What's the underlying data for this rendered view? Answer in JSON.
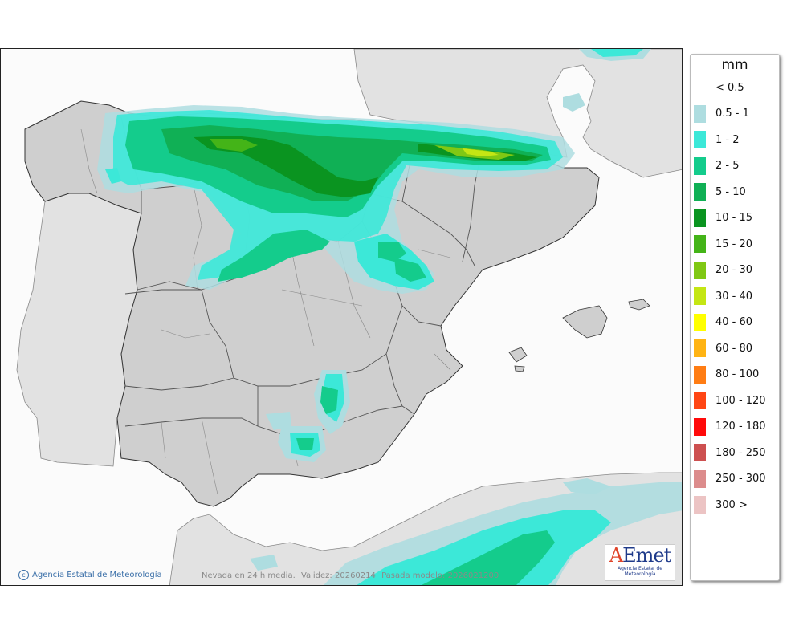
{
  "map": {
    "credit": "Agencia Estatal de Meteorología",
    "info_product": "Nevada en 24 h media.",
    "info_validity": "Validez: 20260214",
    "info_run": "Pasada modelo: 2026021200",
    "logo_a": "A",
    "logo_e": "E",
    "logo_met": "met",
    "logo_sub": "Agencia Estatal de Meteorología"
  },
  "legend": {
    "title": "mm",
    "items": [
      {
        "label": "< 0.5",
        "color": "#ffffff"
      },
      {
        "label": "0.5 - 1",
        "color": "#aedde0"
      },
      {
        "label": "1 - 2",
        "color": "#3ce8d8"
      },
      {
        "label": "2 - 5",
        "color": "#14cc8c"
      },
      {
        "label": "5 - 10",
        "color": "#10b055"
      },
      {
        "label": "10 - 15",
        "color": "#0a9420"
      },
      {
        "label": "15 - 20",
        "color": "#44b418"
      },
      {
        "label": "20 - 30",
        "color": "#80c814"
      },
      {
        "label": "30 - 40",
        "color": "#c4e614"
      },
      {
        "label": "40 - 60",
        "color": "#ffff00"
      },
      {
        "label": "60 - 80",
        "color": "#ffb414"
      },
      {
        "label": "80 - 100",
        "color": "#ff7d14"
      },
      {
        "label": "100 - 120",
        "color": "#ff4614"
      },
      {
        "label": "120 - 180",
        "color": "#ff0a0a"
      },
      {
        "label": "180 - 250",
        "color": "#cd5050"
      },
      {
        "label": "250 - 300",
        "color": "#dc8c8c"
      },
      {
        "label": "300 >",
        "color": "#ecc4c4"
      }
    ]
  }
}
